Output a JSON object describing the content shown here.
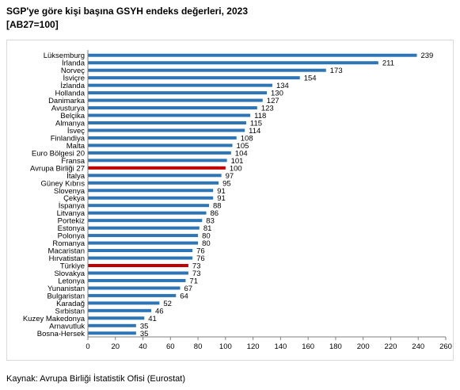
{
  "header": {
    "title": "SGP'ye göre kişi başına GSYH endeks değerleri, 2023",
    "subtitle": "[AB27=100]"
  },
  "footer": {
    "source": "Kaynak: Avrupa Birliği İstatistik Ofisi (Eurostat)"
  },
  "colors": {
    "default_bar": "#2e75b6",
    "highlight_bar": "#c00000",
    "axis": "#7f7f7f"
  },
  "chart_data": {
    "type": "bar",
    "orientation": "horizontal",
    "title": "SGP'ye göre kişi başına GSYH endeks değerleri, 2023",
    "subtitle": "[AB27=100]",
    "xlim": [
      0,
      260
    ],
    "xticks": [
      0,
      20,
      40,
      60,
      80,
      100,
      120,
      140,
      160,
      180,
      200,
      220,
      240,
      260
    ],
    "grid": false,
    "categories": [
      "Lüksemburg",
      "İrlanda",
      "Norveç",
      "İsviçre",
      "İzlanda",
      "Hollanda",
      "Danimarka",
      "Avusturya",
      "Belçika",
      "Almanya",
      "İsveç",
      "Finlandiya",
      "Malta",
      "Euro Bölgesi 20",
      "Fransa",
      "Avrupa Birliği 27",
      "İtalya",
      "Güney Kıbrıs",
      "Slovenya",
      "Çekya",
      "İspanya",
      "Litvanya",
      "Portekiz",
      "Estonya",
      "Polonya",
      "Romanya",
      "Macaristan",
      "Hırvatistan",
      "Türkiye",
      "Slovakya",
      "Letonya",
      "Yunanistan",
      "Bulgaristan",
      "Karadağ",
      "Sırbistan",
      "Kuzey Makedonya",
      "Arnavutluk",
      "Bosna-Hersek"
    ],
    "values": [
      239,
      211,
      173,
      154,
      134,
      130,
      127,
      123,
      118,
      115,
      114,
      108,
      105,
      104,
      101,
      100,
      97,
      95,
      91,
      91,
      88,
      86,
      83,
      81,
      80,
      80,
      76,
      76,
      73,
      73,
      71,
      67,
      64,
      52,
      46,
      41,
      35,
      35
    ],
    "highlighted": [
      "Avrupa Birliği 27",
      "Türkiye"
    ],
    "data_labels": true
  }
}
